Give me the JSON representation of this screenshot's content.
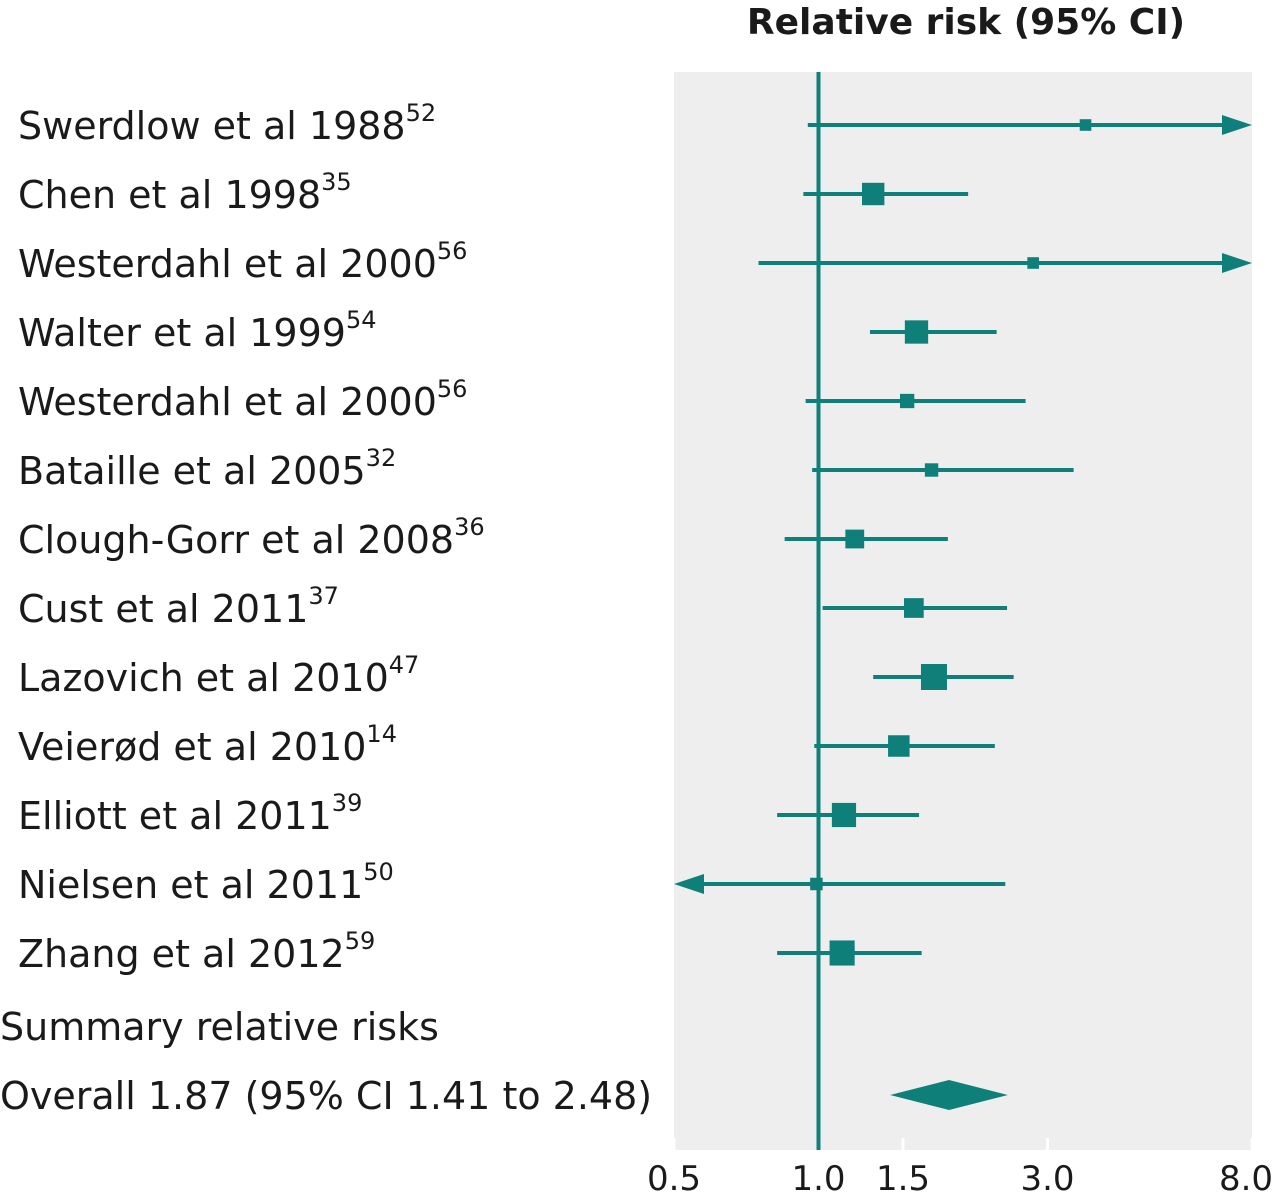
{
  "chart_data": {
    "type": "forest",
    "title": "Relative risk (95% CI)",
    "x_scale": "log",
    "xlim": [
      0.5,
      8.0
    ],
    "x_ticks": [
      "0.5",
      "1.0",
      "1.5",
      "3.0",
      "8.0"
    ],
    "x_tick_values": [
      0.5,
      1.0,
      1.5,
      3.0,
      8.0
    ],
    "reference_line": 1.0,
    "color": "#0f7f7a",
    "panel_color": "#eeeeee",
    "studies": [
      {
        "label": "Swerdlow et al 1988",
        "ref": "52",
        "rr": 3.6,
        "lo": 0.95,
        "hi": 8.0,
        "arrow_right": true,
        "weight": 0.2
      },
      {
        "label": "Chen et al 1998",
        "ref": "35",
        "rr": 1.3,
        "lo": 0.93,
        "hi": 2.05,
        "weight": 0.8
      },
      {
        "label": "Westerdahl et al 2000",
        "ref": "56",
        "rr": 2.8,
        "lo": 0.75,
        "hi": 8.0,
        "arrow_right": true,
        "weight": 0.2
      },
      {
        "label": "Walter et al 1999",
        "ref": "54",
        "rr": 1.6,
        "lo": 1.28,
        "hi": 2.35,
        "weight": 0.85
      },
      {
        "label": "Westerdahl et al 2000",
        "ref": "56",
        "rr": 1.53,
        "lo": 0.94,
        "hi": 2.7,
        "weight": 0.35
      },
      {
        "label": "Bataille et al 2005",
        "ref": "32",
        "rr": 1.72,
        "lo": 0.97,
        "hi": 3.4,
        "weight": 0.3
      },
      {
        "label": "Clough-Gorr et al 2008",
        "ref": "36",
        "rr": 1.19,
        "lo": 0.85,
        "hi": 1.86,
        "weight": 0.6
      },
      {
        "label": "Cust et al 2011",
        "ref": "37",
        "rr": 1.58,
        "lo": 1.02,
        "hi": 2.47,
        "weight": 0.65
      },
      {
        "label": "Lazovich et al 2010",
        "ref": "47",
        "rr": 1.74,
        "lo": 1.3,
        "hi": 2.55,
        "weight": 1.0
      },
      {
        "label": "Veierød et al 2010",
        "ref": "14",
        "rr": 1.47,
        "lo": 0.98,
        "hi": 2.33,
        "weight": 0.75
      },
      {
        "label": "Elliott et al 2011",
        "ref": "39",
        "rr": 1.13,
        "lo": 0.82,
        "hi": 1.62,
        "weight": 0.9
      },
      {
        "label": "Nielsen et al 2011",
        "ref": "50",
        "rr": 0.99,
        "lo": 0.5,
        "hi": 2.45,
        "arrow_left": true,
        "weight": 0.25
      },
      {
        "label": "Zhang et al 2012",
        "ref": "59",
        "rr": 1.12,
        "lo": 0.82,
        "hi": 1.64,
        "weight": 0.95
      }
    ],
    "summary_heading": "Summary relative risks",
    "overall": {
      "label": "Overall 1.87 (95% CI 1.41 to 2.48)",
      "rr": 1.87,
      "lo": 1.41,
      "hi": 2.48
    }
  }
}
